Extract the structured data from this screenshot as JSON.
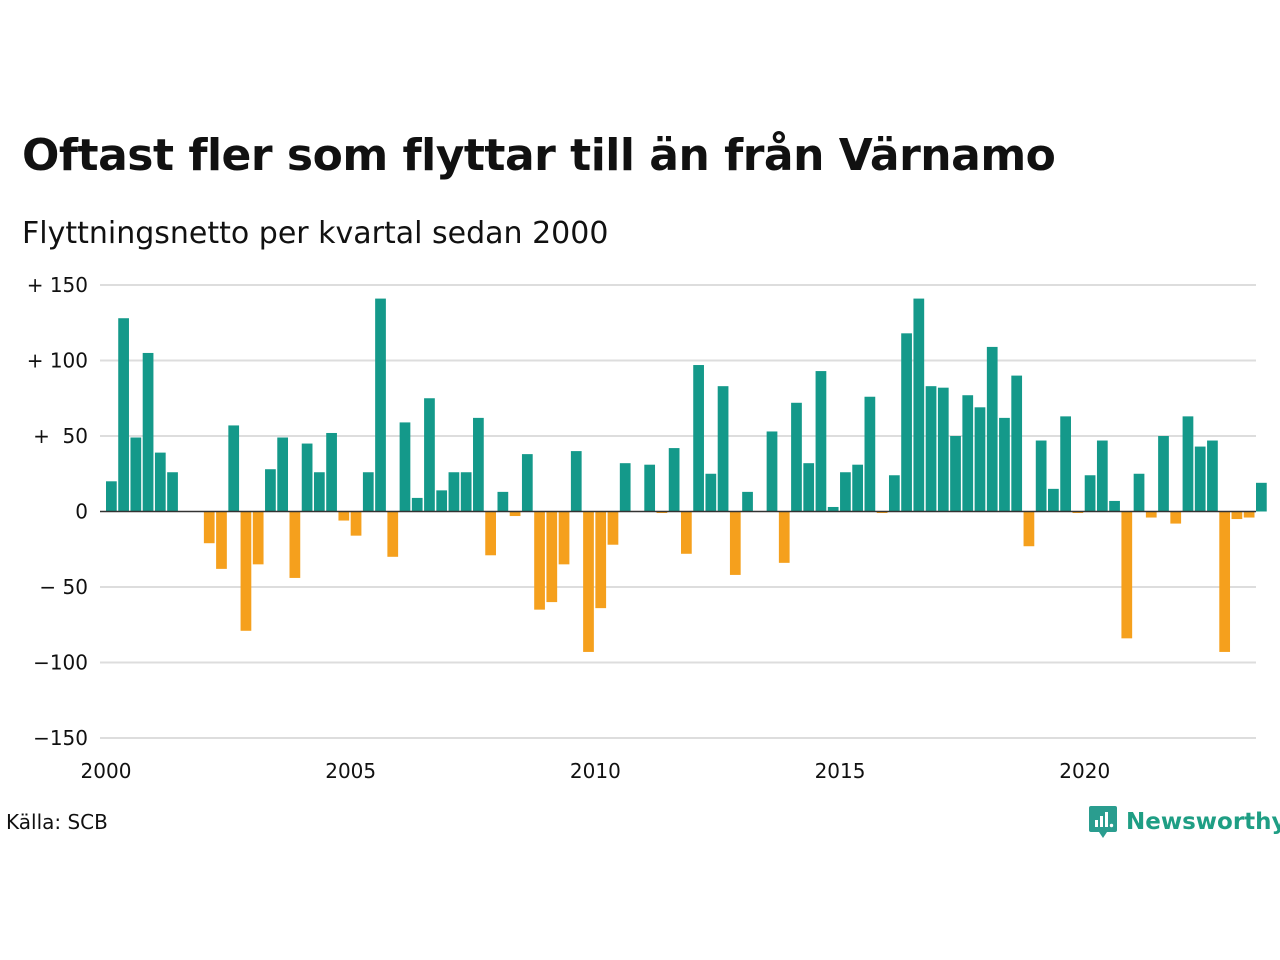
{
  "title": "Oftast fler som flyttar till än från Värnamo",
  "subtitle": "Flyttningsnetto per kvartal sedan 2000",
  "source": "Källa: SCB",
  "brand": {
    "name": "Newsworthy",
    "icon": "newsworthy-logo-icon"
  },
  "colors": {
    "positive": "#14998a",
    "negative": "#f5a01d",
    "grid": "#dddddd",
    "axis": "#333333"
  },
  "chart_data": {
    "type": "bar",
    "title": "Oftast fler som flyttar till än från Värnamo",
    "subtitle": "Flyttningsnetto per kvartal sedan 2000",
    "xlabel": "",
    "ylabel": "",
    "ylim": [
      -150,
      150
    ],
    "xlim": [
      2000,
      2023.5
    ],
    "x_start": 2000,
    "periods_per_year": 4,
    "yticks": [
      {
        "value": 150,
        "label": "+ 150"
      },
      {
        "value": 100,
        "label": "+ 100"
      },
      {
        "value": 50,
        "label": "+  50"
      },
      {
        "value": 0,
        "label": "0"
      },
      {
        "value": -50,
        "label": "− 50"
      },
      {
        "value": -100,
        "label": "−100"
      },
      {
        "value": -150,
        "label": "−150"
      }
    ],
    "xticks": [
      {
        "value": 2000,
        "label": "2000"
      },
      {
        "value": 2005,
        "label": "2005"
      },
      {
        "value": 2010,
        "label": "2010"
      },
      {
        "value": 2015,
        "label": "2015"
      },
      {
        "value": 2020,
        "label": "2020"
      }
    ],
    "grid": true,
    "values": [
      20,
      128,
      49,
      105,
      39,
      26,
      0,
      0,
      -21,
      -38,
      57,
      -79,
      -35,
      28,
      49,
      -44,
      45,
      26,
      52,
      -6,
      -16,
      26,
      141,
      -30,
      59,
      9,
      75,
      14,
      26,
      26,
      62,
      -29,
      13,
      -3,
      38,
      -65,
      -60,
      -35,
      40,
      -93,
      -64,
      -22,
      32,
      0,
      31,
      -1,
      42,
      -28,
      97,
      25,
      83,
      -42,
      13,
      0,
      53,
      -34,
      72,
      32,
      93,
      3,
      26,
      31,
      76,
      -1,
      24,
      118,
      141,
      83,
      82,
      50,
      77,
      69,
      109,
      62,
      90,
      -23,
      47,
      15,
      63,
      -1,
      24,
      47,
      7,
      -84,
      25,
      -4,
      50,
      -8,
      63,
      43,
      47,
      -93,
      -5,
      -4,
      19
    ]
  }
}
